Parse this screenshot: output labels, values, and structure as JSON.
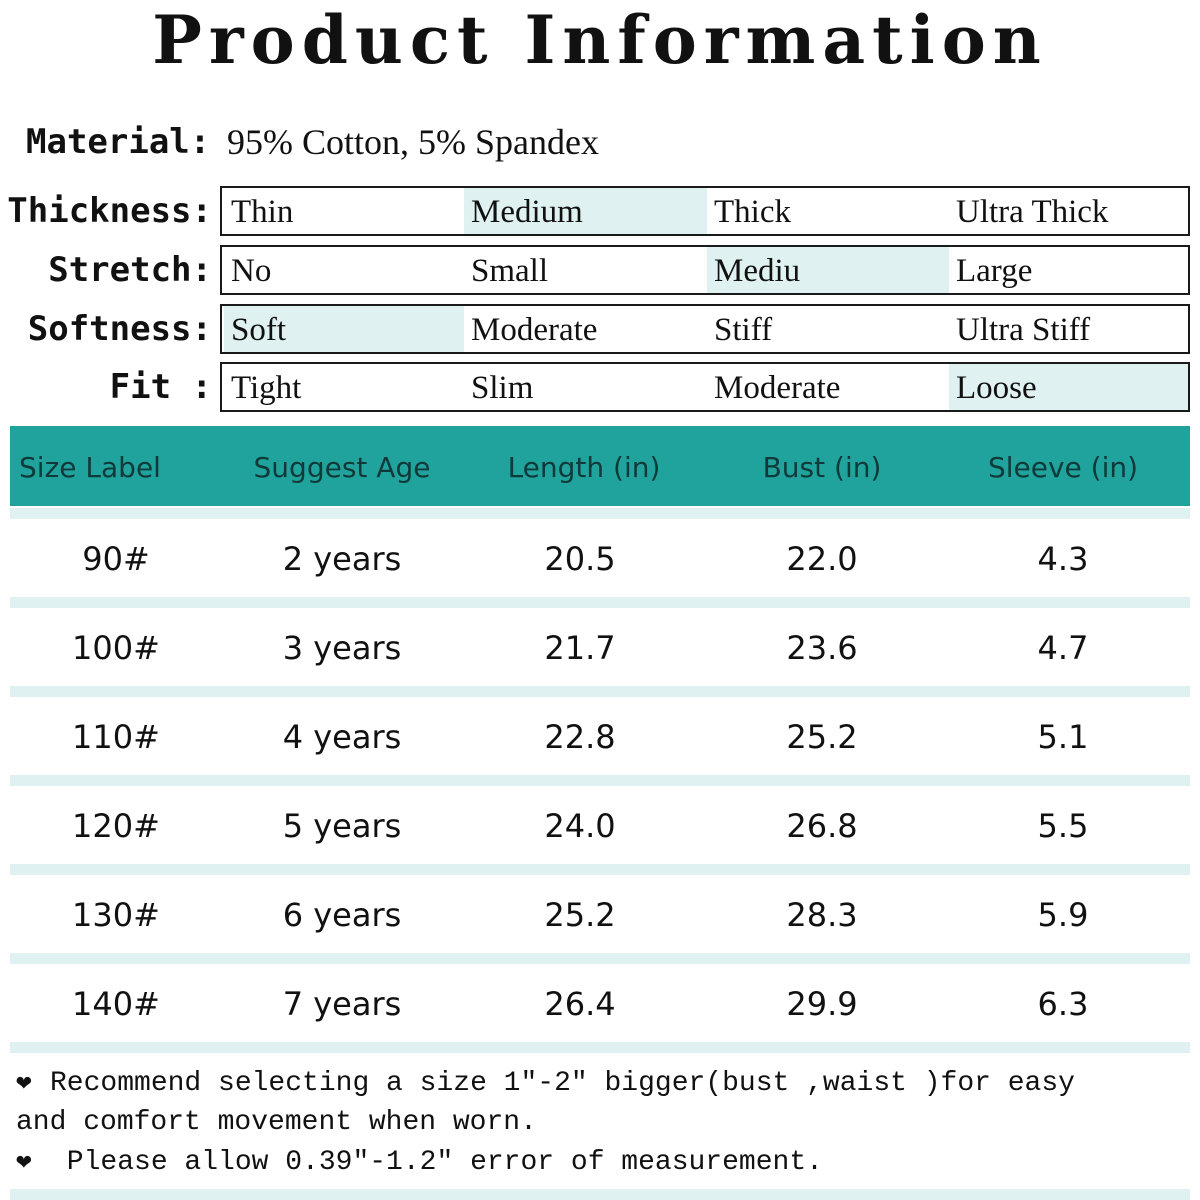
{
  "title": "Product Information",
  "material": {
    "label": "Material:",
    "value": "95% Cotton, 5% Spandex"
  },
  "attributes": [
    {
      "label": "Thickness:",
      "options": [
        "Thin",
        "Medium",
        "Thick",
        "Ultra Thick"
      ],
      "selected": 1
    },
    {
      "label": "Stretch:",
      "options": [
        "No",
        "Small",
        "Mediu",
        "Large"
      ],
      "selected": 2
    },
    {
      "label": "Softness:",
      "options": [
        "Soft",
        "Moderate",
        "Stiff",
        "Ultra Stiff"
      ],
      "selected": 0
    },
    {
      "label": "Fit :",
      "options": [
        "Tight",
        "Slim",
        "Moderate",
        "Loose"
      ],
      "selected": 3
    }
  ],
  "table": {
    "headers": [
      "Size Label",
      "Suggest Age",
      "Length (in)",
      "Bust (in)",
      "Sleeve (in)"
    ],
    "rows": [
      [
        "90#",
        "2 years",
        "20.5",
        "22.0",
        "4.3"
      ],
      [
        "100#",
        "3 years",
        "21.7",
        "23.6",
        "4.7"
      ],
      [
        "110#",
        "4 years",
        "22.8",
        "25.2",
        "5.1"
      ],
      [
        "120#",
        "5 years",
        "24.0",
        "26.8",
        "5.5"
      ],
      [
        "130#",
        "6 years",
        "25.2",
        "28.3",
        "5.9"
      ],
      [
        "140#",
        "7 years",
        "26.4",
        "29.9",
        "6.3"
      ]
    ]
  },
  "notes": {
    "icon": "heart-icon",
    "line1": "Recommend selecting a size 1″-2″ bigger(bust ,waist )for easy",
    "line2": "and comfort movement when worn.",
    "line3": " Please allow 0.39″-1.2″ error of measurement."
  },
  "colors": {
    "header": "#20a39d",
    "highlight": "#dff1f1",
    "text": "#111111"
  }
}
